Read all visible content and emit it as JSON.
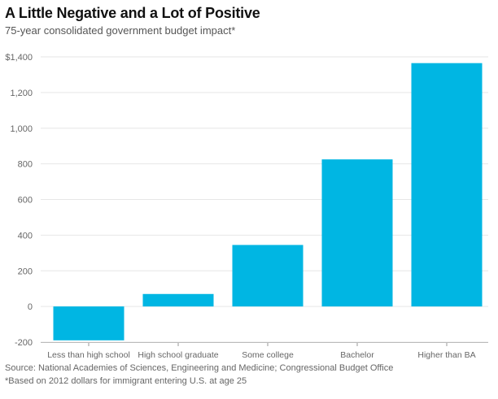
{
  "title": "A Little Negative and a Lot of Positive",
  "subtitle": "75-year consolidated government budget impact*",
  "source": "Source: National Academies of Sciences, Engineering and Medicine; Congressional Budget Office",
  "note": "*Based on 2012 dollars for immigrant entering U.S. at age 25",
  "colors": {
    "bar": "#00b6e3",
    "grid": "#e6e6e6",
    "axis_text": "#666666"
  },
  "chart_data": {
    "type": "bar",
    "categories": [
      "Less than high school",
      "High school graduate",
      "Some college",
      "Bachelor",
      "Higher than BA"
    ],
    "values": [
      -190,
      70,
      345,
      825,
      1365
    ],
    "ylim": [
      -200,
      1400
    ],
    "yticks": [
      -200,
      0,
      200,
      400,
      600,
      800,
      1000,
      1200,
      1400
    ],
    "ytick_labels": [
      "-200",
      "0",
      "200",
      "400",
      "600",
      "800",
      "1,000",
      "1,200",
      "$1,400"
    ],
    "grid": true,
    "xlabel": "",
    "ylabel": ""
  }
}
